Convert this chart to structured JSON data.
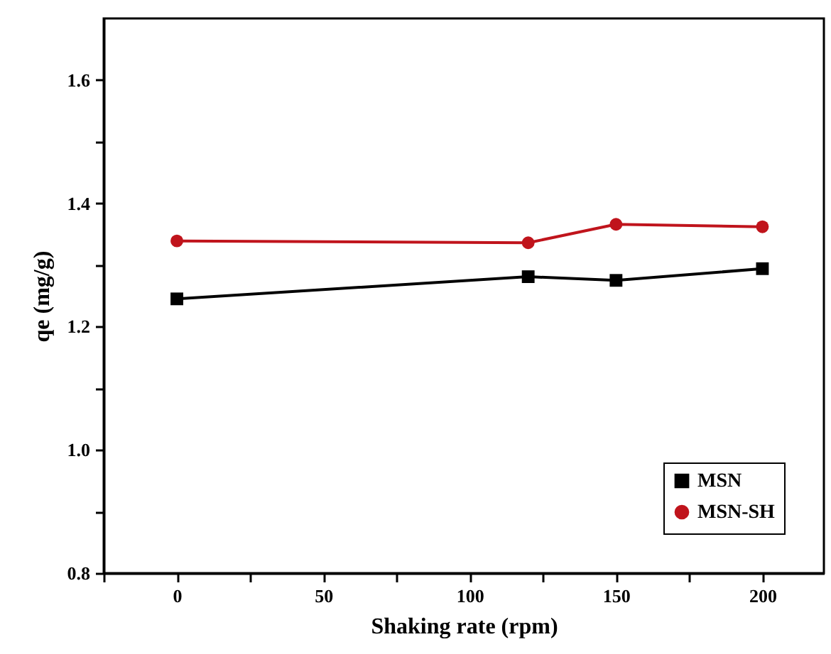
{
  "chart_data": {
    "type": "line",
    "xlabel": "Shaking rate (rpm)",
    "ylabel": "qe (mg/g)",
    "x": [
      0,
      120,
      150,
      200
    ],
    "series": [
      {
        "name": "MSN",
        "color": "#000000",
        "marker": "square",
        "values": [
          1.245,
          1.281,
          1.275,
          1.294
        ]
      },
      {
        "name": "MSN-SH",
        "color": "#c0141c",
        "marker": "circle",
        "values": [
          1.339,
          1.336,
          1.366,
          1.362
        ]
      }
    ],
    "xlim": [
      -25,
      221
    ],
    "ylim": [
      0.8,
      1.7
    ],
    "xticks": [
      {
        "value": -25,
        "label": null
      },
      0,
      {
        "value": 25,
        "label": null
      },
      50,
      {
        "value": 75,
        "label": null
      },
      100,
      {
        "value": 125,
        "label": null
      },
      150,
      {
        "value": 175,
        "label": null
      },
      200
    ],
    "yticks": [
      0.8,
      {
        "value": 0.9,
        "label": null
      },
      {
        "value": 1.0,
        "label": "1.0"
      },
      {
        "value": 1.1,
        "label": null
      },
      1.2,
      {
        "value": 1.3,
        "label": null
      },
      1.4,
      {
        "value": 1.5,
        "label": null
      },
      1.6
    ],
    "grid": false,
    "legend": "bottom right",
    "line_style": "solid"
  }
}
